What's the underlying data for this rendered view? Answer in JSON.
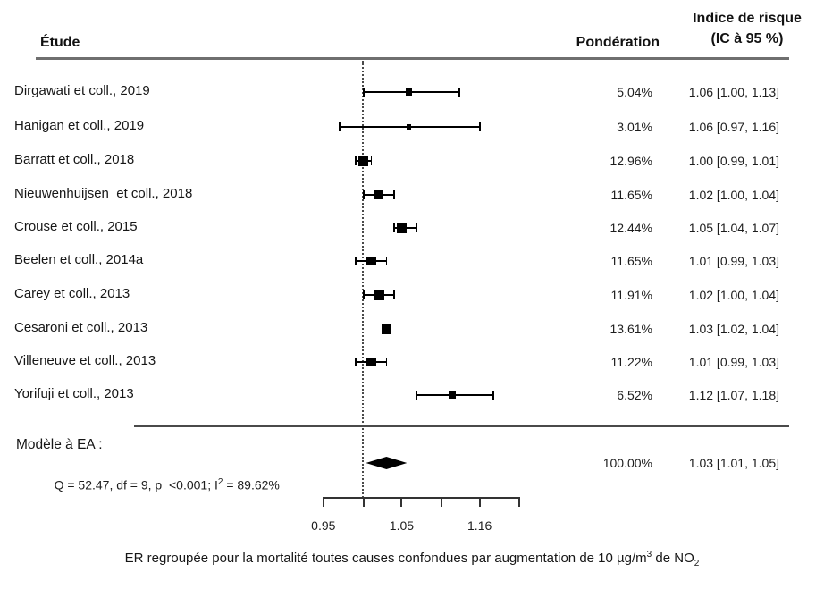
{
  "header": {
    "study_col": "Étude",
    "weight_col": "Pondération",
    "risk_col_line1": "Indice de risque",
    "risk_col_line2": "(IC à 95 %)"
  },
  "chart_data": {
    "type": "forest",
    "x_scale": "log",
    "null_line_value": 1.0,
    "xlim": [
      0.95,
      1.22
    ],
    "axis": {
      "ticks": [
        0.95,
        1.0,
        1.05,
        1.105,
        1.16,
        1.22
      ],
      "labels": [
        {
          "value": 0.95,
          "text": "0.95"
        },
        {
          "value": 1.05,
          "text": "1.05"
        },
        {
          "value": 1.16,
          "text": "1.16"
        }
      ]
    },
    "studies": [
      {
        "label": "Dirgawati et coll., 2019",
        "weight_pct": 5.04,
        "weight_text": "5.04%",
        "estimate": 1.06,
        "ci_low": 1.0,
        "ci_high": 1.13,
        "ci_text": "1.06 [1.00, 1.13]"
      },
      {
        "label": "Hanigan et coll., 2019",
        "weight_pct": 3.01,
        "weight_text": "3.01%",
        "estimate": 1.06,
        "ci_low": 0.97,
        "ci_high": 1.16,
        "ci_text": "1.06 [0.97, 1.16]"
      },
      {
        "label": "Barratt et coll., 2018",
        "weight_pct": 12.96,
        "weight_text": "12.96%",
        "estimate": 1.0,
        "ci_low": 0.99,
        "ci_high": 1.01,
        "ci_text": "1.00 [0.99, 1.01]"
      },
      {
        "label": "Nieuwenhuijsen  et coll., 2018",
        "weight_pct": 11.65,
        "weight_text": "11.65%",
        "estimate": 1.02,
        "ci_low": 1.0,
        "ci_high": 1.04,
        "ci_text": "1.02 [1.00, 1.04]"
      },
      {
        "label": "Crouse et coll., 2015",
        "weight_pct": 12.44,
        "weight_text": "12.44%",
        "estimate": 1.05,
        "ci_low": 1.04,
        "ci_high": 1.07,
        "ci_text": "1.05 [1.04, 1.07]"
      },
      {
        "label": "Beelen et coll., 2014a",
        "weight_pct": 11.65,
        "weight_text": "11.65%",
        "estimate": 1.01,
        "ci_low": 0.99,
        "ci_high": 1.03,
        "ci_text": "1.01 [0.99, 1.03]"
      },
      {
        "label": "Carey et coll., 2013",
        "weight_pct": 11.91,
        "weight_text": "11.91%",
        "estimate": 1.02,
        "ci_low": 1.0,
        "ci_high": 1.04,
        "ci_text": "1.02 [1.00, 1.04]"
      },
      {
        "label": "Cesaroni et coll., 2013",
        "weight_pct": 13.61,
        "weight_text": "13.61%",
        "estimate": 1.03,
        "ci_low": 1.02,
        "ci_high": 1.04,
        "ci_text": "1.03 [1.02, 1.04]"
      },
      {
        "label": "Villeneuve et coll., 2013",
        "weight_pct": 11.22,
        "weight_text": "11.22%",
        "estimate": 1.01,
        "ci_low": 0.99,
        "ci_high": 1.03,
        "ci_text": "1.01 [0.99, 1.03]"
      },
      {
        "label": "Yorifuji et coll., 2013",
        "weight_pct": 6.52,
        "weight_text": "6.52%",
        "estimate": 1.12,
        "ci_low": 1.07,
        "ci_high": 1.18,
        "ci_text": "1.12 [1.07, 1.18]"
      }
    ],
    "summary": {
      "model_label": "Modèle à EA :",
      "het_prefix": "Q = 52.47, df = 9, p  <0.001; I",
      "het_sup": "2",
      "het_suffix": " = 89.62%",
      "weight_text": "100.00%",
      "estimate": 1.03,
      "ci_low": 1.01,
      "ci_high": 1.05,
      "ci_text": "1.03 [1.01, 1.05]"
    },
    "caption": {
      "p1": "ER regroupée pour la mortalité toutes causes confondues par augmentation de 10 µg/m",
      "sup": "3",
      "p2": " de NO",
      "sub": "2"
    }
  }
}
